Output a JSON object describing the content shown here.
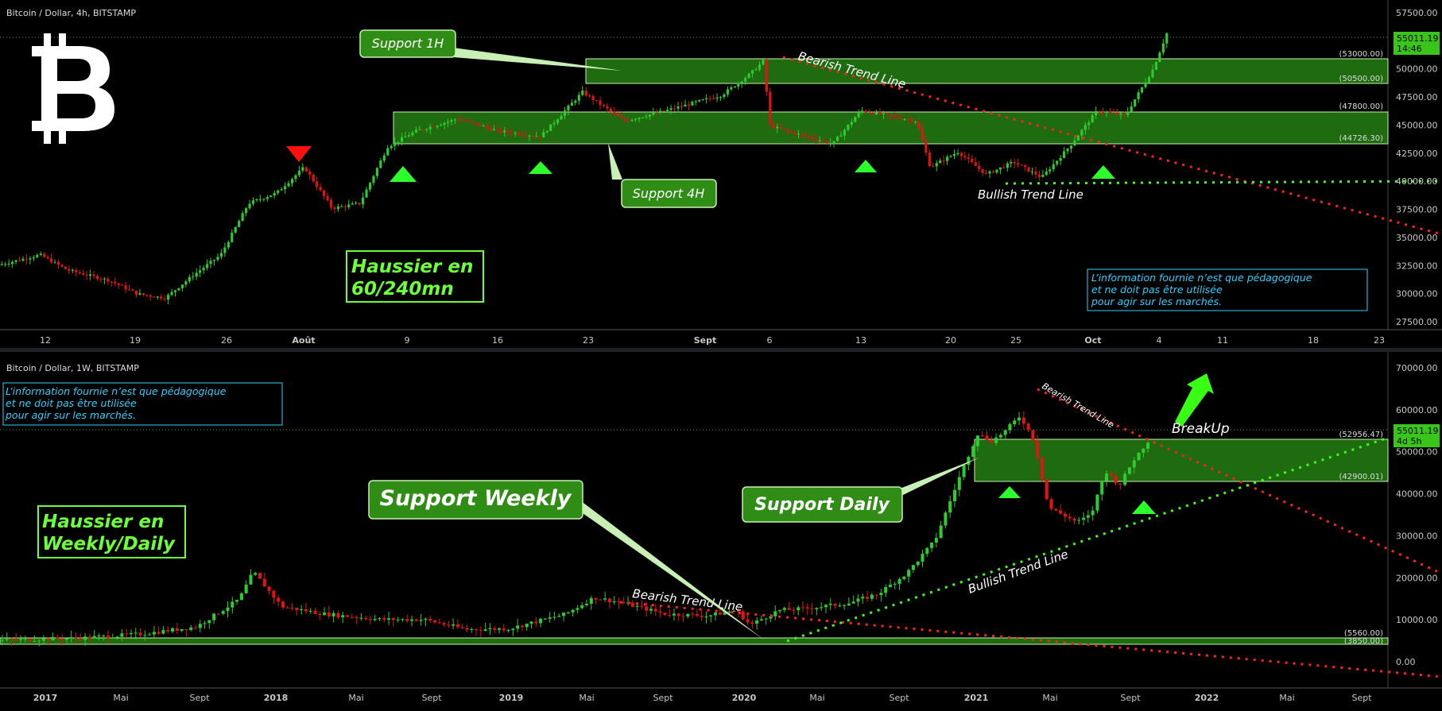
{
  "colors": {
    "up": "#2ecc2e",
    "down": "#e01414",
    "zone": "#1f6b0f",
    "zone_edge": "#c8f0b4",
    "label_bg": "#2f8c14",
    "accent": "#6cff3a",
    "note": "#2fd0ff",
    "bear": "#ff2020",
    "bull": "#39ff14"
  },
  "top": {
    "header": "Bitcoin / Dollar, 4h, BITSTAMP",
    "price_tag": "55011.19",
    "time_tag": "14:46",
    "price_labels": [
      "57500.00",
      "52500.00",
      "50000.00",
      "47500.00",
      "45000.00",
      "42500.00",
      "40000.00",
      "37500.00",
      "35000.00",
      "32500.00",
      "30000.00",
      "27500.00"
    ],
    "zone_labels": [
      "(53000.00)",
      "(50500.00)",
      "(47800.00)",
      "(44726.30)"
    ],
    "date_labels": [
      "12",
      "19",
      "26",
      "Août",
      "9",
      "16",
      "23",
      "Sept",
      "6",
      "13",
      "20",
      "25",
      "Oct",
      "4",
      "11",
      "18",
      "23"
    ],
    "support_1h": "Support 1H",
    "support_4h": "Support 4H",
    "bear_line": "Bearish Trend Line",
    "bull_line": "Bullish Trend Line",
    "bias_line1": "Haussier en",
    "bias_line2": "60/240mn",
    "note_line1": "L’information fournie n’est que pédagogique",
    "note_line2": "et ne doit pas être utilisée",
    "note_line3": "pour agir sur les marchés.",
    "icon": "bitcoin-logo-icon"
  },
  "bottom": {
    "header": "Bitcoin / Dollar, 1W, BITSTAMP",
    "price_tag": "55011.19",
    "time_tag": "4d 5h",
    "price_labels": [
      "70000.00",
      "60000.00",
      "50000.00",
      "40000.00",
      "30000.00",
      "20000.00",
      "10000.00",
      "0.00"
    ],
    "zone_labels": [
      "(52956.47)",
      "(42900.01)",
      "(5560.00)",
      "(3850.00)"
    ],
    "date_labels": [
      "2017",
      "Mai",
      "Sept",
      "2018",
      "Mai",
      "Sept",
      "2019",
      "Mai",
      "Sept",
      "2020",
      "Mai",
      "Sept",
      "2021",
      "Mai",
      "Sept",
      "2022",
      "Mai",
      "Sept"
    ],
    "support_weekly": "Support Weekly",
    "support_daily": "Support Daily",
    "bear_line": "Bearish Trend Line",
    "bull_line": "Bullish Trend Line",
    "breakup": "BreakUp",
    "bias_line1": "Haussier en",
    "bias_line2": "Weekly/Daily",
    "note_line1": "L’information fournie n’est que pédagogique",
    "note_line2": "et ne doit pas être utilisée",
    "note_line3": "pour agir sur les marchés."
  },
  "chart_data": [
    {
      "type": "candlestick",
      "title": "Bitcoin / Dollar, 4h, BITSTAMP",
      "ylim": [
        27500,
        57500
      ],
      "x_ticks": [
        "12",
        "19",
        "26",
        "Août",
        "9",
        "16",
        "23",
        "Sept",
        "6",
        "13",
        "20",
        "25",
        "Oct",
        "4",
        "11",
        "18",
        "23"
      ],
      "close_path": [
        [
          0,
          33000
        ],
        [
          0.03,
          34000
        ],
        [
          0.05,
          32500
        ],
        [
          0.08,
          31500
        ],
        [
          0.1,
          30200
        ],
        [
          0.12,
          29800
        ],
        [
          0.14,
          32000
        ],
        [
          0.16,
          34000
        ],
        [
          0.18,
          39000
        ],
        [
          0.2,
          40000
        ],
        [
          0.22,
          42500
        ],
        [
          0.24,
          38500
        ],
        [
          0.26,
          39000
        ],
        [
          0.28,
          44500
        ],
        [
          0.3,
          46000
        ],
        [
          0.33,
          47200
        ],
        [
          0.36,
          46000
        ],
        [
          0.39,
          45500
        ],
        [
          0.42,
          49800
        ],
        [
          0.45,
          47000
        ],
        [
          0.48,
          48000
        ],
        [
          0.52,
          49500
        ],
        [
          0.54,
          51500
        ],
        [
          0.55,
          52800
        ],
        [
          0.555,
          46500
        ],
        [
          0.58,
          45500
        ],
        [
          0.6,
          44800
        ],
        [
          0.62,
          48000
        ],
        [
          0.64,
          47500
        ],
        [
          0.66,
          47000
        ],
        [
          0.67,
          42500
        ],
        [
          0.69,
          44000
        ],
        [
          0.71,
          41800
        ],
        [
          0.73,
          43000
        ],
        [
          0.75,
          41500
        ],
        [
          0.77,
          44500
        ],
        [
          0.79,
          48000
        ],
        [
          0.81,
          47500
        ],
        [
          0.83,
          52000
        ],
        [
          0.84,
          55500
        ]
      ],
      "zones": [
        {
          "high": 53000,
          "low": 50500
        },
        {
          "high": 47800,
          "low": 44726.3
        }
      ],
      "last_price": 55011.19
    },
    {
      "type": "candlestick",
      "title": "Bitcoin / Dollar, 1W, BITSTAMP",
      "ylim": [
        -5000,
        75000
      ],
      "x_ticks": [
        "2017",
        "Mai",
        "Sept",
        "2018",
        "Mai",
        "Sept",
        "2019",
        "Mai",
        "Sept",
        "2020",
        "Mai",
        "Sept",
        "2021",
        "Mai",
        "Sept",
        "2022",
        "Mai",
        "Sept"
      ],
      "close_path": [
        [
          0,
          800
        ],
        [
          0.06,
          1500
        ],
        [
          0.1,
          2500
        ],
        [
          0.14,
          4500
        ],
        [
          0.17,
          12000
        ],
        [
          0.18,
          19500
        ],
        [
          0.2,
          10000
        ],
        [
          0.23,
          8000
        ],
        [
          0.27,
          6500
        ],
        [
          0.3,
          6500
        ],
        [
          0.33,
          3800
        ],
        [
          0.36,
          4000
        ],
        [
          0.4,
          8000
        ],
        [
          0.42,
          12500
        ],
        [
          0.44,
          11000
        ],
        [
          0.47,
          8000
        ],
        [
          0.5,
          7500
        ],
        [
          0.52,
          9000
        ],
        [
          0.53,
          5000
        ],
        [
          0.55,
          9000
        ],
        [
          0.57,
          9500
        ],
        [
          0.6,
          11000
        ],
        [
          0.62,
          13500
        ],
        [
          0.64,
          19000
        ],
        [
          0.66,
          28000
        ],
        [
          0.67,
          38000
        ],
        [
          0.68,
          48000
        ],
        [
          0.69,
          57000
        ],
        [
          0.7,
          55000
        ],
        [
          0.71,
          58000
        ],
        [
          0.72,
          62000
        ],
        [
          0.73,
          55000
        ],
        [
          0.74,
          37000
        ],
        [
          0.76,
          33000
        ],
        [
          0.77,
          35000
        ],
        [
          0.78,
          47000
        ],
        [
          0.79,
          43000
        ],
        [
          0.8,
          50000
        ],
        [
          0.81,
          55000
        ]
      ],
      "zones": [
        {
          "high": 52956.47,
          "low": 42900.01
        },
        {
          "high": 5560,
          "low": 3850
        }
      ],
      "last_price": 55011.19
    }
  ]
}
